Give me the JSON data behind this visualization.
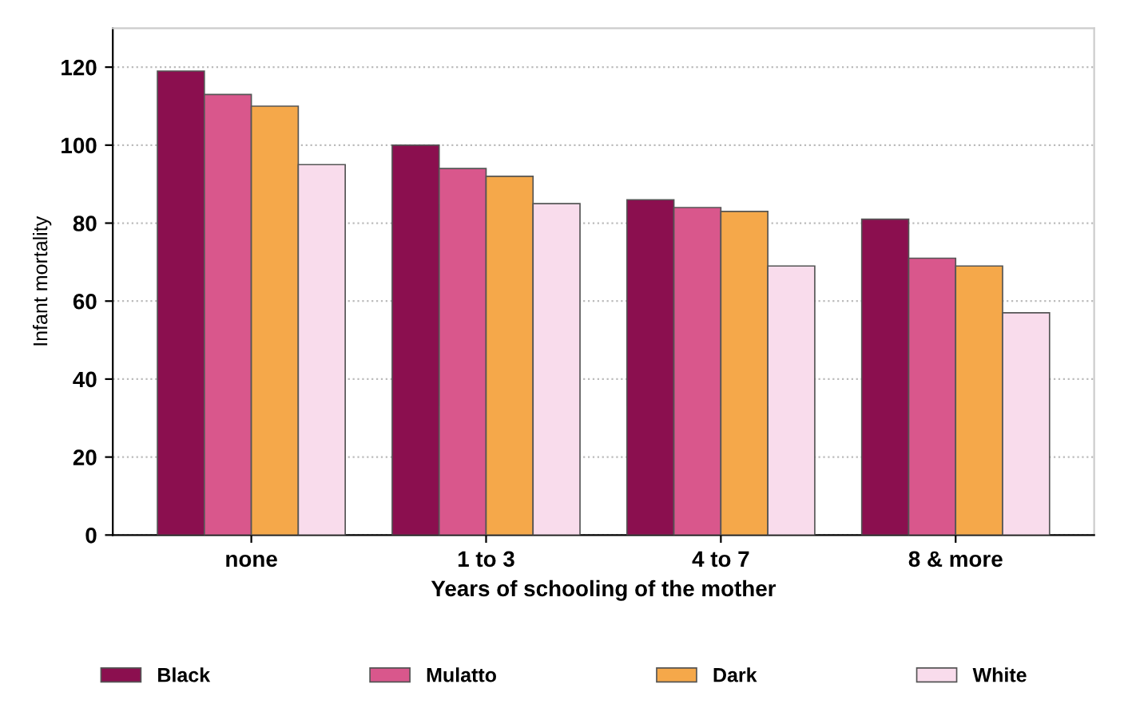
{
  "chart_data": {
    "type": "bar",
    "xlabel": "Years of schooling of the mother",
    "ylabel": "Infant mortality",
    "categories": [
      "none",
      "1 to 3",
      "4 to 7",
      "8 & more"
    ],
    "series": [
      {
        "name": "Black",
        "color": "#8b0f4f",
        "values": [
          119,
          100,
          86,
          81
        ]
      },
      {
        "name": "Mulatto",
        "color": "#d9578c",
        "values": [
          113,
          94,
          84,
          71
        ]
      },
      {
        "name": "Dark",
        "color": "#f5a84a",
        "values": [
          110,
          92,
          83,
          69
        ]
      },
      {
        "name": "White",
        "color": "#f9dcec",
        "values": [
          95,
          85,
          69,
          57
        ]
      }
    ],
    "ylim": [
      0,
      130
    ],
    "yticks": [
      0,
      20,
      40,
      60,
      80,
      100,
      120
    ],
    "grid": "y",
    "legend": "bottom"
  }
}
